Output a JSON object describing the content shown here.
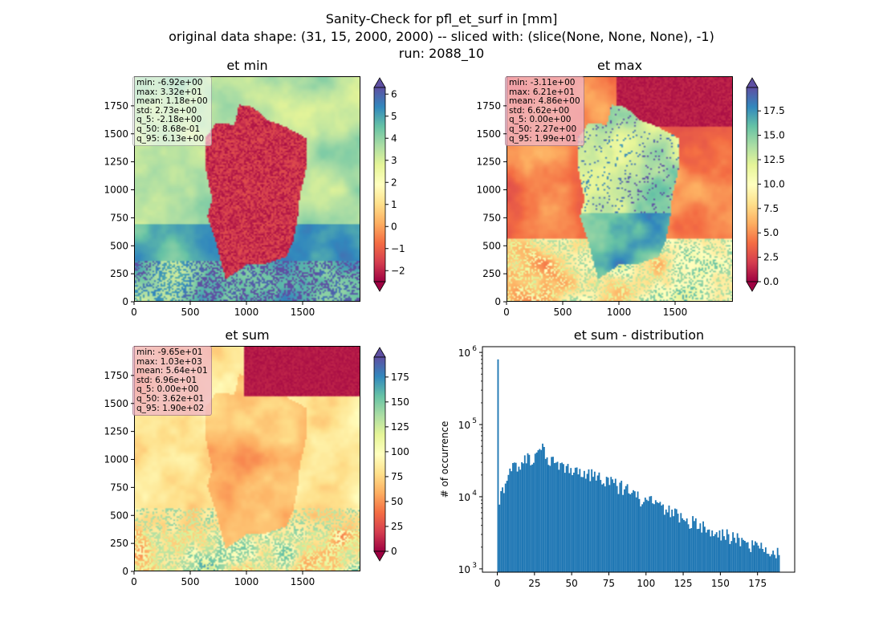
{
  "figure": {
    "suptitle_lines": [
      "Sanity-Check for pfl_et_surf in [mm]",
      "original data shape: (31, 15, 2000, 2000) -- sliced with: (slice(None, None, None), -1)",
      "run: 2088_10"
    ]
  },
  "chart_data": [
    {
      "type": "heatmap",
      "title": "et min",
      "x_ticks": [
        "0",
        "500",
        "1000",
        "1500"
      ],
      "y_ticks": [
        "0",
        "250",
        "500",
        "750",
        "1000",
        "1250",
        "1500",
        "1750"
      ],
      "xlim": [
        0,
        2000
      ],
      "ylim": [
        0,
        2000
      ],
      "colormap": "Spectral",
      "colorbar": {
        "ticks": [
          "−2",
          "−1",
          "0",
          "1",
          "2",
          "3",
          "4",
          "5",
          "6"
        ],
        "range": [
          -2.5,
          6.3
        ],
        "extend": "both"
      },
      "stats": [
        "min: -6.92e+00",
        "max: 3.32e+01",
        "mean: 1.18e+00",
        "std: 2.73e+00",
        "q_5: -2.18e+00",
        "q_50: 8.68e-01",
        "q_95: 6.13e+00"
      ]
    },
    {
      "type": "heatmap",
      "title": "et max",
      "x_ticks": [
        "0",
        "500",
        "1000",
        "1500"
      ],
      "y_ticks": [
        "0",
        "250",
        "500",
        "750",
        "1000",
        "1250",
        "1500",
        "1750"
      ],
      "xlim": [
        0,
        2000
      ],
      "ylim": [
        0,
        2000
      ],
      "colormap": "Spectral",
      "colorbar": {
        "ticks": [
          "0.0",
          "2.5",
          "5.0",
          "7.5",
          "10.0",
          "12.5",
          "15.0",
          "17.5"
        ],
        "range": [
          0,
          19.9
        ],
        "extend": "both"
      },
      "stats": [
        "min: -3.11e+00",
        "max: 6.21e+01",
        "mean: 4.86e+00",
        "std: 6.62e+00",
        "q_5: 0.00e+00",
        "q_50: 2.27e+00",
        "q_95: 1.99e+01"
      ]
    },
    {
      "type": "heatmap",
      "title": "et sum",
      "x_ticks": [
        "0",
        "500",
        "1000",
        "1500"
      ],
      "y_ticks": [
        "0",
        "250",
        "500",
        "750",
        "1000",
        "1250",
        "1500",
        "1750"
      ],
      "xlim": [
        0,
        2000
      ],
      "ylim": [
        0,
        2000
      ],
      "colormap": "Spectral",
      "colorbar": {
        "ticks": [
          "0",
          "25",
          "50",
          "75",
          "100",
          "125",
          "150",
          "175"
        ],
        "range": [
          0,
          195
        ],
        "extend": "both"
      },
      "stats": [
        "min: -9.65e+01",
        "max: 1.03e+03",
        "mean: 5.64e+01",
        "std: 6.96e+01",
        "q_5: 0.00e+00",
        "q_50: 3.62e+01",
        "q_95: 1.90e+02"
      ]
    },
    {
      "type": "bar",
      "title": "et sum - distribution",
      "ylabel": "# of occurrence",
      "yscale": "log",
      "x_ticks": [
        "0",
        "25",
        "50",
        "75",
        "100",
        "125",
        "150",
        "175"
      ],
      "xlim": [
        -10,
        200
      ],
      "ylim": [
        900,
        1200000
      ],
      "y_ticks": [
        "10",
        "10",
        "10",
        "10"
      ],
      "y_tick_exponents": [
        "3",
        "4",
        "5",
        "6"
      ],
      "bin_width": 1,
      "anchors": [
        [
          0,
          800000
        ],
        [
          1,
          8000
        ],
        [
          2,
          10000
        ],
        [
          4,
          13000
        ],
        [
          6,
          16000
        ],
        [
          8,
          20000
        ],
        [
          10,
          24000
        ],
        [
          13,
          28000
        ],
        [
          16,
          31000
        ],
        [
          20,
          34000
        ],
        [
          24,
          38000
        ],
        [
          27,
          44000
        ],
        [
          30,
          45000
        ],
        [
          33,
          38000
        ],
        [
          36,
          32000
        ],
        [
          40,
          28000
        ],
        [
          45,
          25000
        ],
        [
          50,
          24000
        ],
        [
          55,
          22000
        ],
        [
          60,
          20000
        ],
        [
          65,
          20000
        ],
        [
          70,
          19000
        ],
        [
          75,
          16000
        ],
        [
          80,
          14000
        ],
        [
          85,
          13000
        ],
        [
          90,
          11000
        ],
        [
          95,
          9500
        ],
        [
          100,
          9000
        ],
        [
          105,
          8000
        ],
        [
          110,
          7500
        ],
        [
          115,
          6500
        ],
        [
          120,
          5500
        ],
        [
          125,
          5000
        ],
        [
          130,
          4500
        ],
        [
          135,
          4000
        ],
        [
          140,
          3500
        ],
        [
          145,
          3200
        ],
        [
          150,
          3000
        ],
        [
          155,
          2800
        ],
        [
          160,
          2600
        ],
        [
          165,
          2400
        ],
        [
          170,
          2200
        ],
        [
          175,
          2000
        ],
        [
          180,
          1900
        ],
        [
          185,
          1800
        ],
        [
          189,
          1700
        ]
      ],
      "bar_color": "#1f77b4"
    }
  ]
}
